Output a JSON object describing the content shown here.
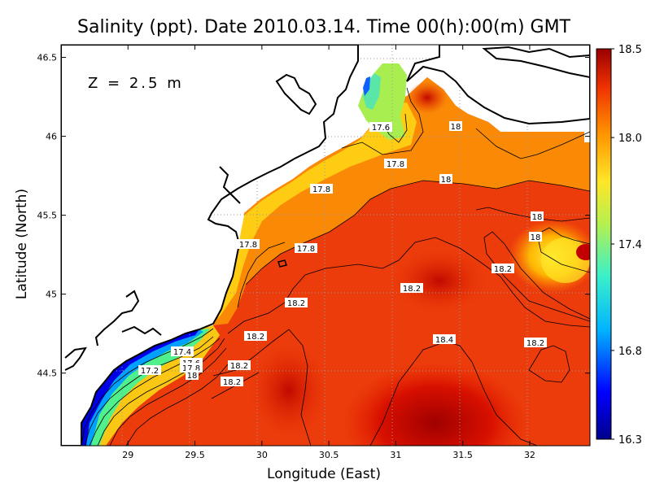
{
  "title": "Salinity (ppt). Date 2010.03.14. Time 00(h):00(m) GMT",
  "depth_label": "Z = 2.5 m",
  "x_axis": {
    "label": "Longitude (East)",
    "ticks": [
      "29",
      "29.5",
      "30",
      "30.5",
      "31",
      "31.5",
      "32"
    ]
  },
  "y_axis": {
    "label": "Latitude (North)",
    "ticks": [
      "44.5",
      "45",
      "45.5",
      "46",
      "46.5"
    ]
  },
  "colorbar": {
    "ticks": [
      "18.5",
      "18.0",
      "17.4",
      "16.8",
      "16.3"
    ]
  },
  "contour_labels": [
    "17.6",
    "18",
    "17.8",
    "18",
    "17.8",
    "18",
    "17.8",
    "17.8",
    "18",
    "18.2",
    "18.2",
    "18.2",
    "18.4",
    "18.2",
    "18.2",
    "17.4",
    "17.6",
    "17.8",
    "18",
    "17.2",
    "18.2",
    "18.2"
  ],
  "colors": {
    "land": "#ffffff",
    "coast": "#000000",
    "grid": "#9a9a9a"
  },
  "map_data": {
    "lon_range": [
      28.5,
      32.45
    ],
    "lat_range": [
      44.04,
      46.58
    ],
    "color_range": [
      16.3,
      18.5
    ]
  }
}
